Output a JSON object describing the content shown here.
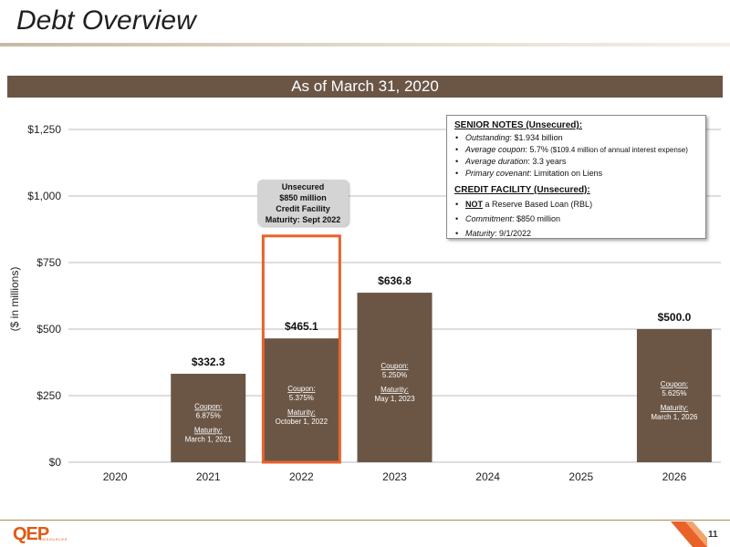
{
  "page": {
    "title": "Debt Overview",
    "banner": "As of March 31, 2020",
    "page_number": "11",
    "logo_text": "QEP",
    "logo_subtext": "RESOURCES"
  },
  "colors": {
    "bar": "#6b5646",
    "highlight": "#e8622a",
    "gridline": "#bdbdbd"
  },
  "chart_data": {
    "type": "bar",
    "ylabel": "($ in millions)",
    "xlabel": "",
    "ylim": [
      0,
      1250
    ],
    "yticks": [
      0,
      250,
      500,
      750,
      1000,
      1250
    ],
    "ytick_labels": [
      "$0",
      "$250",
      "$500",
      "$750",
      "$1,000",
      "$1,250"
    ],
    "grid": true,
    "categories": [
      "2020",
      "2021",
      "2022",
      "2023",
      "2024",
      "2025",
      "2026"
    ],
    "values": [
      null,
      332.3,
      465.1,
      636.8,
      null,
      null,
      500.0
    ],
    "value_labels": [
      "",
      "$332.3",
      "$465.1",
      "$636.8",
      "",
      "",
      "$500.0"
    ],
    "coupon_labels": [
      "",
      "Coupon:",
      "Coupon:",
      "Coupon:",
      "",
      "",
      "Coupon:"
    ],
    "coupons": [
      "",
      "6.875%",
      "5.375%",
      "5.250%",
      "",
      "",
      "5.625%"
    ],
    "maturity_labels": [
      "",
      "Maturity:",
      "Maturity:",
      "Maturity:",
      "",
      "",
      "Maturity:"
    ],
    "maturities": [
      "",
      "March 1, 2021",
      "October 1, 2022",
      "May 1, 2023",
      "",
      "",
      "March 1, 2026"
    ],
    "credit_facility": {
      "category": "2022",
      "value": 850,
      "lines": [
        "Unsecured",
        "$850 million",
        "Credit Facility",
        "Maturity: Sept 2022"
      ]
    }
  },
  "legend": {
    "senior_head": "SENIOR NOTES (Unsecured):",
    "senior_items": [
      {
        "label": "Outstanding",
        "value": ": $1.934 billion"
      },
      {
        "label": "Average coupon",
        "value": ": 5.7%",
        "note": " ($109.4 million of annual interest expense)"
      },
      {
        "label": "Average duration",
        "value": ": 3.3 years"
      },
      {
        "label": "Primary covenant",
        "value": ": Limitation on Liens"
      }
    ],
    "credit_head": "CREDIT FACILITY (Unsecured):",
    "credit_not": "NOT",
    "credit_not_rest": " a Reserve Based Loan (RBL)",
    "credit_items": [
      {
        "label": "Commitment",
        "value": ": $850 million"
      },
      {
        "label": "Maturity",
        "value": ": 9/1/2022"
      }
    ]
  }
}
